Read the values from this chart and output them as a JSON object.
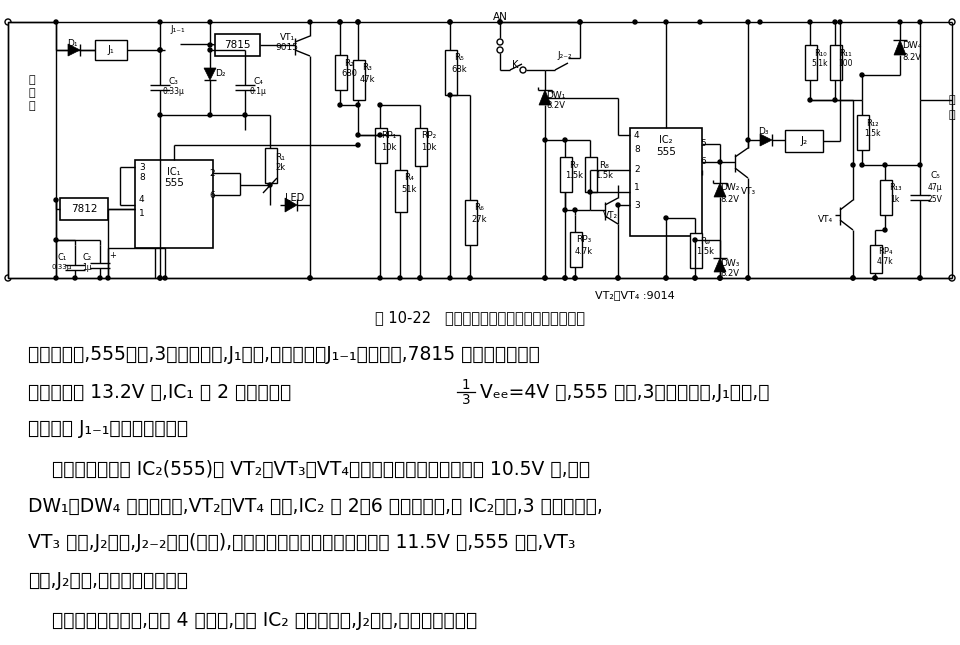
{
  "bg_color": "#ffffff",
  "text_color": "#000000",
  "fig_width": 9.6,
  "fig_height": 6.45,
  "circuit_caption": "图 10-22   有稳压充电回路的蓄电池保护器电路",
  "p1_line1": "升为高电位,555复位,3脚呈低电平,J₁吸合,蓄电池通过J₁₋₁常开触点,7815 充电。当蓄电池",
  "p1_line2a": "端电压降至 13.2V 时,IC₁ 的 2 脚电位低于",
  "p1_line2b": "Vₑₑ=4V 时,555 置位,3脚呈高电平,J₁释放,电",
  "p1_line3": "池又通过 J₁₋₁常闭触点充电。",
  "p2_line1": "    放电保护电路由 IC₂(555)和 VT₂、VT₃、VT₄等组成。当蓄电池电压降至 10.5V 时,由于",
  "p2_line2": "DW₁、DW₄ 的稳压作用,VT₂、VT₄ 截止,IC₂ 的 2、6 脚为高电位,使 IC₂复位,3 脚呈低电平,",
  "p2_line3": "VT₃ 截止,J₂释放,J₂₋₂断开(向下),实现过放保护。当电池电压大于 11.5V 时,555 置位,VT₃",
  "p2_line4": "导通,J₂吸合,负载才得电工作。",
  "p3": "    当负载发生短路时,由于 4 脚接地,强制 IC₂ 为复位状态,J₂释放,实现短路保护。",
  "font_size_caption": 10.5,
  "font_size_body": 13.5
}
